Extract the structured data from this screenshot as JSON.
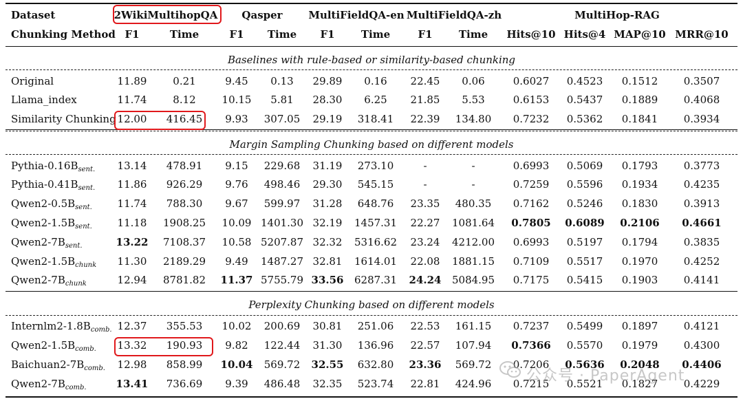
{
  "header": {
    "dataset_label": "Dataset",
    "method_label": "Chunking Method",
    "datasets": [
      "2WikiMultihopQA",
      "Qasper",
      "MultiFieldQA-en",
      "MultiFieldQA-zh",
      "MultiHop-RAG"
    ],
    "metrics": [
      "F1",
      "Time",
      "F1",
      "Time",
      "F1",
      "Time",
      "F1",
      "Time",
      "Hits@10",
      "Hits@4",
      "MAP@10",
      "MRR@10"
    ]
  },
  "sections": [
    {
      "title": "Baselines with rule-based or similarity-based chunking",
      "rows": [
        {
          "base": "Original",
          "sub": "",
          "values": [
            "11.89",
            "0.21",
            "9.45",
            "0.13",
            "29.89",
            "0.16",
            "22.45",
            "0.06",
            "0.6027",
            "0.4523",
            "0.1512",
            "0.3507"
          ],
          "bold": []
        },
        {
          "base": "Llama_index",
          "sub": "",
          "values": [
            "11.74",
            "8.12",
            "10.15",
            "5.81",
            "28.30",
            "6.25",
            "21.85",
            "5.53",
            "0.6153",
            "0.5437",
            "0.1889",
            "0.4068"
          ],
          "bold": []
        },
        {
          "base": "Similarity Chunking",
          "sub": "",
          "values": [
            "12.00",
            "416.45",
            "9.93",
            "307.05",
            "29.19",
            "318.41",
            "22.39",
            "134.80",
            "0.7232",
            "0.5362",
            "0.1841",
            "0.3934"
          ],
          "bold": []
        }
      ]
    },
    {
      "title": "Margin Sampling Chunking based on different models",
      "rows": [
        {
          "base": "Pythia-0.16B",
          "sub": "sent.",
          "values": [
            "13.14",
            "478.91",
            "9.15",
            "229.68",
            "31.19",
            "273.10",
            "-",
            "-",
            "0.6993",
            "0.5069",
            "0.1793",
            "0.3773"
          ],
          "bold": []
        },
        {
          "base": "Pythia-0.41B",
          "sub": "sent.",
          "values": [
            "11.86",
            "926.29",
            "9.76",
            "498.46",
            "29.30",
            "545.15",
            "-",
            "-",
            "0.7259",
            "0.5596",
            "0.1934",
            "0.4235"
          ],
          "bold": []
        },
        {
          "base": "Qwen2-0.5B",
          "sub": "sent.",
          "values": [
            "11.74",
            "788.30",
            "9.67",
            "599.97",
            "31.28",
            "648.76",
            "23.35",
            "480.35",
            "0.7162",
            "0.5246",
            "0.1830",
            "0.3913"
          ],
          "bold": []
        },
        {
          "base": "Qwen2-1.5B",
          "sub": "sent.",
          "values": [
            "11.18",
            "1908.25",
            "10.09",
            "1401.30",
            "32.19",
            "1457.31",
            "22.27",
            "1081.64",
            "0.7805",
            "0.6089",
            "0.2106",
            "0.4661"
          ],
          "bold": [
            8,
            9,
            10,
            11
          ]
        },
        {
          "base": "Qwen2-7B",
          "sub": "sent.",
          "values": [
            "13.22",
            "7108.37",
            "10.58",
            "5207.87",
            "32.32",
            "5316.62",
            "23.24",
            "4212.00",
            "0.6993",
            "0.5197",
            "0.1794",
            "0.3835"
          ],
          "bold": [
            0
          ]
        },
        {
          "base": "Qwen2-1.5B",
          "sub": "chunk",
          "values": [
            "11.30",
            "2189.29",
            "9.49",
            "1487.27",
            "32.81",
            "1614.01",
            "22.08",
            "1881.15",
            "0.7109",
            "0.5517",
            "0.1970",
            "0.4252"
          ],
          "bold": []
        },
        {
          "base": "Qwen2-7B",
          "sub": "chunk",
          "values": [
            "12.94",
            "8781.82",
            "11.37",
            "5755.79",
            "33.56",
            "6287.31",
            "24.24",
            "5084.95",
            "0.7175",
            "0.5415",
            "0.1903",
            "0.4141"
          ],
          "bold": [
            2,
            4,
            6
          ]
        }
      ]
    },
    {
      "title": "Perplexity Chunking based on different models",
      "rows": [
        {
          "base": "Internlm2-1.8B",
          "sub": "comb.",
          "values": [
            "12.37",
            "355.53",
            "10.02",
            "200.69",
            "30.81",
            "251.06",
            "22.53",
            "161.15",
            "0.7237",
            "0.5499",
            "0.1897",
            "0.4121"
          ],
          "bold": []
        },
        {
          "base": "Qwen2-1.5B",
          "sub": "comb.",
          "values": [
            "13.32",
            "190.93",
            "9.82",
            "122.44",
            "31.30",
            "136.96",
            "22.57",
            "107.94",
            "0.7366",
            "0.5570",
            "0.1979",
            "0.4300"
          ],
          "bold": [
            8
          ]
        },
        {
          "base": "Baichuan2-7B",
          "sub": "comb.",
          "values": [
            "12.98",
            "858.99",
            "10.04",
            "569.72",
            "32.55",
            "632.80",
            "23.36",
            "569.72",
            "0.7206",
            "0.5636",
            "0.2048",
            "0.4406"
          ],
          "bold": [
            2,
            4,
            6,
            9,
            10,
            11
          ]
        },
        {
          "base": "Qwen2-7B",
          "sub": "comb.",
          "values": [
            "13.41",
            "736.69",
            "9.39",
            "486.48",
            "32.35",
            "523.74",
            "22.81",
            "424.96",
            "0.7215",
            "0.5521",
            "0.1827",
            "0.4229"
          ],
          "bold": [
            0
          ]
        }
      ]
    }
  ],
  "watermark": {
    "text": "公众号 · PaperAgent",
    "icon": "wechat-icon"
  }
}
